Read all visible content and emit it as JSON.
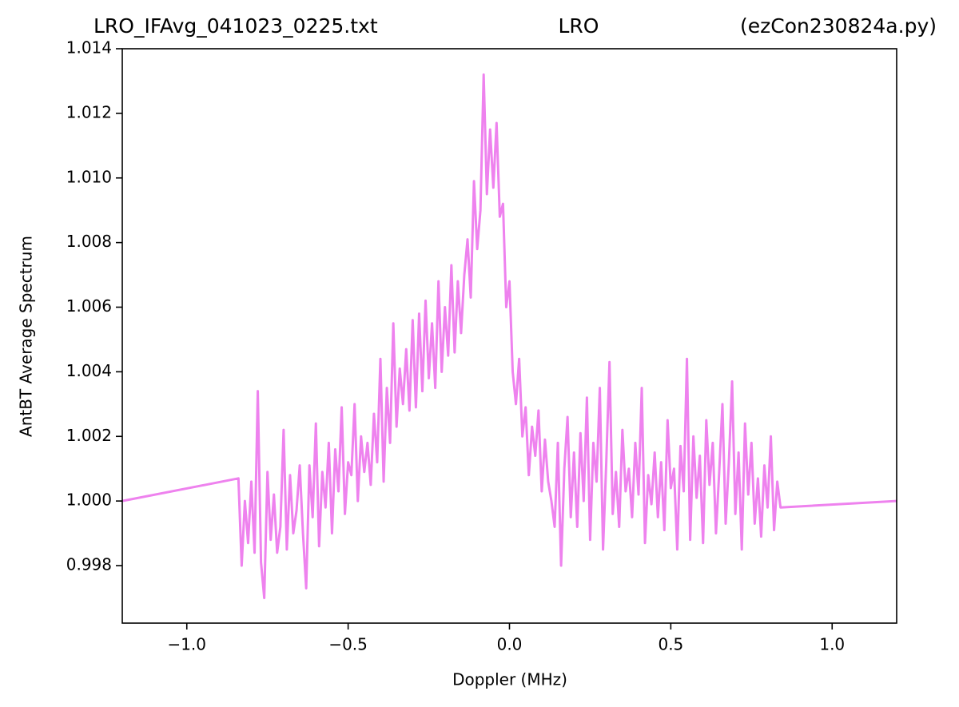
{
  "chart_data": {
    "type": "line",
    "title": [
      "LRO_IFAvg_041023_0225.txt",
      "LRO",
      "(ezCon230824a.py)"
    ],
    "x_label": "Doppler (MHz)",
    "y_label": "AntBT Average Spectrum",
    "color": "#ee82ee",
    "xlim": [
      -1.2,
      1.2
    ],
    "ylim": [
      0.99622,
      1.014
    ],
    "xticks": [
      {
        "value": -1,
        "label": "−1.0"
      },
      {
        "value": -0.5,
        "label": "−0.5"
      },
      {
        "value": 0,
        "label": "0.0"
      },
      0.5,
      {
        "value": 1,
        "label": "1.0"
      }
    ],
    "yticks": [
      0.998,
      {
        "value": 1,
        "label": "1.000"
      },
      1.002,
      1.004,
      1.006,
      1.008,
      {
        "value": 1.01,
        "label": "1.010"
      },
      1.012,
      1.014
    ],
    "x": [
      -1.2,
      -0.84,
      -0.83,
      -0.82,
      -0.81,
      -0.8,
      -0.79,
      -0.78,
      -0.77,
      -0.76,
      -0.75,
      -0.74,
      -0.73,
      -0.72,
      -0.71,
      -0.7,
      -0.69,
      -0.68,
      -0.67,
      -0.66,
      -0.65,
      -0.64,
      -0.63,
      -0.62,
      -0.61,
      -0.6,
      -0.59,
      -0.58,
      -0.57,
      -0.56,
      -0.55,
      -0.54,
      -0.53,
      -0.52,
      -0.51,
      -0.5,
      -0.49,
      -0.48,
      -0.47,
      -0.46,
      -0.45,
      -0.44,
      -0.43,
      -0.42,
      -0.41,
      -0.4,
      -0.39,
      -0.38,
      -0.37,
      -0.36,
      -0.35,
      -0.34,
      -0.33,
      -0.32,
      -0.31,
      -0.3,
      -0.29,
      -0.28,
      -0.27,
      -0.26,
      -0.25,
      -0.24,
      -0.23,
      -0.22,
      -0.21,
      -0.2,
      -0.19,
      -0.18,
      -0.17,
      -0.16,
      -0.15,
      -0.14,
      -0.13,
      -0.12,
      -0.11,
      -0.1,
      -0.09,
      -0.08,
      -0.07,
      -0.06,
      -0.05,
      -0.04,
      -0.03,
      -0.02,
      -0.01,
      0,
      0.01,
      0.02,
      0.03,
      0.04,
      0.05,
      0.06,
      0.07,
      0.08,
      0.09,
      0.1,
      0.11,
      0.12,
      0.13,
      0.14,
      0.15,
      0.16,
      0.17,
      0.18,
      0.19,
      0.2,
      0.21,
      0.22,
      0.23,
      0.24,
      0.25,
      0.26,
      0.27,
      0.28,
      0.29,
      0.3,
      0.31,
      0.32,
      0.33,
      0.34,
      0.35,
      0.36,
      0.37,
      0.38,
      0.39,
      0.4,
      0.41,
      0.42,
      0.43,
      0.44,
      0.45,
      0.46,
      0.47,
      0.48,
      0.49,
      0.5,
      0.51,
      0.52,
      0.53,
      0.54,
      0.55,
      0.56,
      0.57,
      0.58,
      0.59,
      0.6,
      0.61,
      0.62,
      0.63,
      0.64,
      0.65,
      0.66,
      0.67,
      0.68,
      0.69,
      0.7,
      0.71,
      0.72,
      0.73,
      0.74,
      0.75,
      0.76,
      0.77,
      0.78,
      0.79,
      0.8,
      0.81,
      0.82,
      0.83,
      0.84,
      1.2
    ],
    "values": [
      1.0,
      1.0007,
      0.998,
      1.0,
      0.9987,
      1.0006,
      0.9984,
      1.0034,
      0.9981,
      0.997,
      1.0009,
      0.9988,
      1.0002,
      0.9984,
      0.9992,
      1.0022,
      0.9985,
      1.0008,
      0.999,
      0.9997,
      1.0011,
      0.999,
      0.9973,
      1.0011,
      0.9995,
      1.0024,
      0.9986,
      1.0009,
      0.9998,
      1.0018,
      0.999,
      1.0016,
      1.0003,
      1.0029,
      0.9996,
      1.0012,
      1.0008,
      1.003,
      1.0,
      1.002,
      1.0009,
      1.0018,
      1.0005,
      1.0027,
      1.0012,
      1.0044,
      1.0006,
      1.0035,
      1.0018,
      1.0055,
      1.0023,
      1.0041,
      1.003,
      1.0047,
      1.0028,
      1.0056,
      1.0029,
      1.0058,
      1.0034,
      1.0062,
      1.0038,
      1.0055,
      1.0035,
      1.0068,
      1.004,
      1.006,
      1.0045,
      1.0073,
      1.0046,
      1.0068,
      1.0052,
      1.007,
      1.0081,
      1.0063,
      1.0099,
      1.0078,
      1.009,
      1.0132,
      1.0095,
      1.0115,
      1.0097,
      1.0117,
      1.0088,
      1.0092,
      1.006,
      1.0068,
      1.004,
      1.003,
      1.0044,
      1.002,
      1.0029,
      1.0008,
      1.0023,
      1.0014,
      1.0028,
      1.0003,
      1.0019,
      1.0006,
      1.0,
      0.9992,
      1.0018,
      0.998,
      1.001,
      1.0026,
      0.9995,
      1.0015,
      0.9992,
      1.0021,
      1.0,
      1.0032,
      0.9988,
      1.0018,
      1.0006,
      1.0035,
      0.9985,
      1.0012,
      1.0043,
      0.9996,
      1.0009,
      0.9992,
      1.0022,
      1.0003,
      1.001,
      0.9995,
      1.0018,
      1.0002,
      1.0035,
      0.9987,
      1.0008,
      0.9999,
      1.0015,
      0.9995,
      1.0012,
      0.9991,
      1.0025,
      1.0004,
      1.001,
      0.9985,
      1.0017,
      1.0003,
      1.0044,
      0.9988,
      1.002,
      1.0001,
      1.0014,
      0.9987,
      1.0025,
      1.0005,
      1.0018,
      0.999,
      1.0009,
      1.003,
      0.9993,
      1.0012,
      1.0037,
      0.9996,
      1.0015,
      0.9985,
      1.0024,
      1.0002,
      1.0018,
      0.9993,
      1.0007,
      0.9989,
      1.0011,
      0.9998,
      1.002,
      0.9991,
      1.0006,
      0.9998,
      1.0
    ]
  }
}
